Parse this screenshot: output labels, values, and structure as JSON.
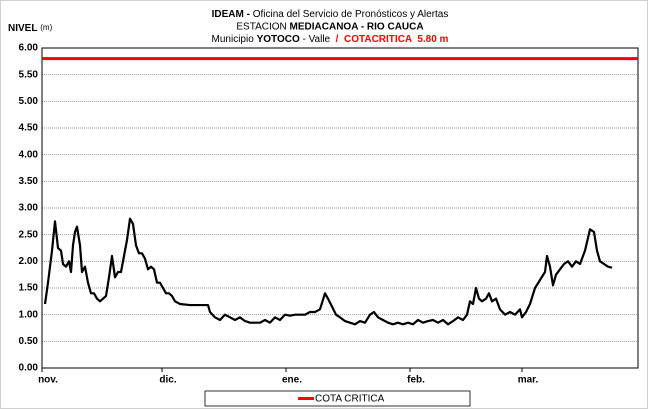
{
  "chart_data": {
    "type": "line",
    "title_lines": [
      [
        {
          "text": "IDEAM - ",
          "bold": true
        },
        {
          "text": "Oficina del Servicio de Pronósticos y Alertas"
        }
      ],
      [
        {
          "text": "ESTACION "
        },
        {
          "text": "MEDIACANOA - RIO CAUCA",
          "bold": true
        }
      ],
      [
        {
          "text": "Municipio "
        },
        {
          "text": "YOTOCO",
          "bold": true
        },
        {
          "text": " - Valle  "
        },
        {
          "text": "/  COTACRITICA  5.80 m",
          "bold": true,
          "color": "#ff0000"
        }
      ]
    ],
    "y_label": {
      "main": "NIVEL",
      "unit": "(m)"
    },
    "xlim": [
      0,
      149
    ],
    "xticks": [
      {
        "value": 0,
        "label": "nov."
      },
      {
        "value": 30,
        "label": "dic."
      },
      {
        "value": 61,
        "label": "ene."
      },
      {
        "value": 92,
        "label": "feb."
      },
      {
        "value": 120,
        "label": "mar."
      }
    ],
    "ylim": [
      0,
      6
    ],
    "yticks": [
      {
        "value": 0,
        "label": "0.00"
      },
      {
        "value": 0.5,
        "label": "0.50"
      },
      {
        "value": 1,
        "label": "1.00"
      },
      {
        "value": 1.5,
        "label": "1.50"
      },
      {
        "value": 2,
        "label": "2.00"
      },
      {
        "value": 2.5,
        "label": "2.50"
      },
      {
        "value": 3,
        "label": "3.00"
      },
      {
        "value": 3.5,
        "label": "3.50"
      },
      {
        "value": 4,
        "label": "4.00"
      },
      {
        "value": 4.5,
        "label": "4.50"
      },
      {
        "value": 5,
        "label": "5.00"
      },
      {
        "value": 5.5,
        "label": "5.50"
      },
      {
        "value": 6,
        "label": "6.00"
      }
    ],
    "grid": true,
    "critical_line": {
      "name": "COTA CRITICA",
      "value": 5.8,
      "color": "#ff0000"
    },
    "series": [
      {
        "color": "#000000",
        "x": [
          0.75,
          1.5,
          2.5,
          3.25,
          4,
          4.75,
          5.25,
          6,
          6.75,
          7.25,
          7.75,
          8.25,
          8.75,
          9.5,
          10,
          10.75,
          11.5,
          12.25,
          13,
          13.75,
          14.5,
          15.25,
          16,
          16.75,
          17.5,
          18.25,
          19,
          19.75,
          20.5,
          21.25,
          22,
          22.75,
          23.5,
          24.25,
          25,
          25.75,
          26.5,
          27.25,
          28,
          28.75,
          29.5,
          30.25,
          31,
          31.75,
          32.5,
          33.25,
          34.5,
          37,
          39.5,
          41.5,
          42,
          43.25,
          44.5,
          45.75,
          47,
          48.25,
          49.5,
          50.75,
          52,
          53.25,
          54.5,
          55.75,
          57,
          58.25,
          59.5,
          60.75,
          62,
          63.25,
          64.5,
          65.75,
          67,
          68.25,
          69.5,
          70.75,
          71.5,
          72.5,
          73.5,
          74.5,
          75.75,
          77,
          78.25,
          79.5,
          80.75,
          82,
          83,
          84,
          85.25,
          86.5,
          87.75,
          89,
          90.25,
          91.5,
          92.75,
          94,
          95.25,
          96.5,
          97.75,
          99,
          100.25,
          101.5,
          102.75,
          104,
          105.25,
          106.25,
          107,
          107.75,
          108.5,
          109.25,
          110,
          111,
          111.75,
          112.5,
          113.5,
          114.5,
          115.75,
          117,
          118.25,
          119.5,
          120,
          121,
          122,
          123.25,
          124.5,
          125.75,
          126.25,
          127,
          127.75,
          128.5,
          129.5,
          130.5,
          131.5,
          132.5,
          133.5,
          134.5,
          135.75,
          137,
          138,
          138.75,
          139.5,
          140.5,
          141.5,
          142.5
        ],
        "values": [
          1.2,
          1.6,
          2.2,
          2.75,
          2.25,
          2.2,
          1.95,
          1.9,
          2.0,
          1.8,
          2.3,
          2.55,
          2.65,
          2.3,
          1.8,
          1.9,
          1.6,
          1.4,
          1.4,
          1.3,
          1.25,
          1.3,
          1.35,
          1.7,
          2.1,
          1.7,
          1.8,
          1.8,
          2.1,
          2.4,
          2.8,
          2.7,
          2.3,
          2.15,
          2.15,
          2.05,
          1.85,
          1.9,
          1.85,
          1.6,
          1.6,
          1.5,
          1.4,
          1.4,
          1.35,
          1.25,
          1.2,
          1.18,
          1.18,
          1.18,
          1.05,
          0.95,
          0.9,
          1.0,
          0.95,
          0.9,
          0.95,
          0.88,
          0.85,
          0.85,
          0.85,
          0.9,
          0.85,
          0.95,
          0.9,
          1.0,
          0.98,
          1.0,
          1.0,
          1.0,
          1.05,
          1.05,
          1.1,
          1.4,
          1.3,
          1.15,
          1.0,
          0.95,
          0.88,
          0.85,
          0.82,
          0.88,
          0.85,
          1.0,
          1.05,
          0.95,
          0.9,
          0.85,
          0.82,
          0.85,
          0.82,
          0.85,
          0.82,
          0.9,
          0.85,
          0.88,
          0.9,
          0.85,
          0.9,
          0.82,
          0.88,
          0.95,
          0.9,
          1.0,
          1.25,
          1.2,
          1.5,
          1.3,
          1.25,
          1.3,
          1.4,
          1.25,
          1.3,
          1.1,
          1.0,
          1.05,
          1.0,
          1.1,
          0.95,
          1.05,
          1.2,
          1.5,
          1.65,
          1.8,
          2.1,
          1.9,
          1.55,
          1.75,
          1.85,
          1.95,
          2.0,
          1.9,
          2.0,
          1.95,
          2.2,
          2.6,
          2.55,
          2.2,
          2.0,
          1.95,
          1.9,
          1.88
        ]
      }
    ]
  }
}
